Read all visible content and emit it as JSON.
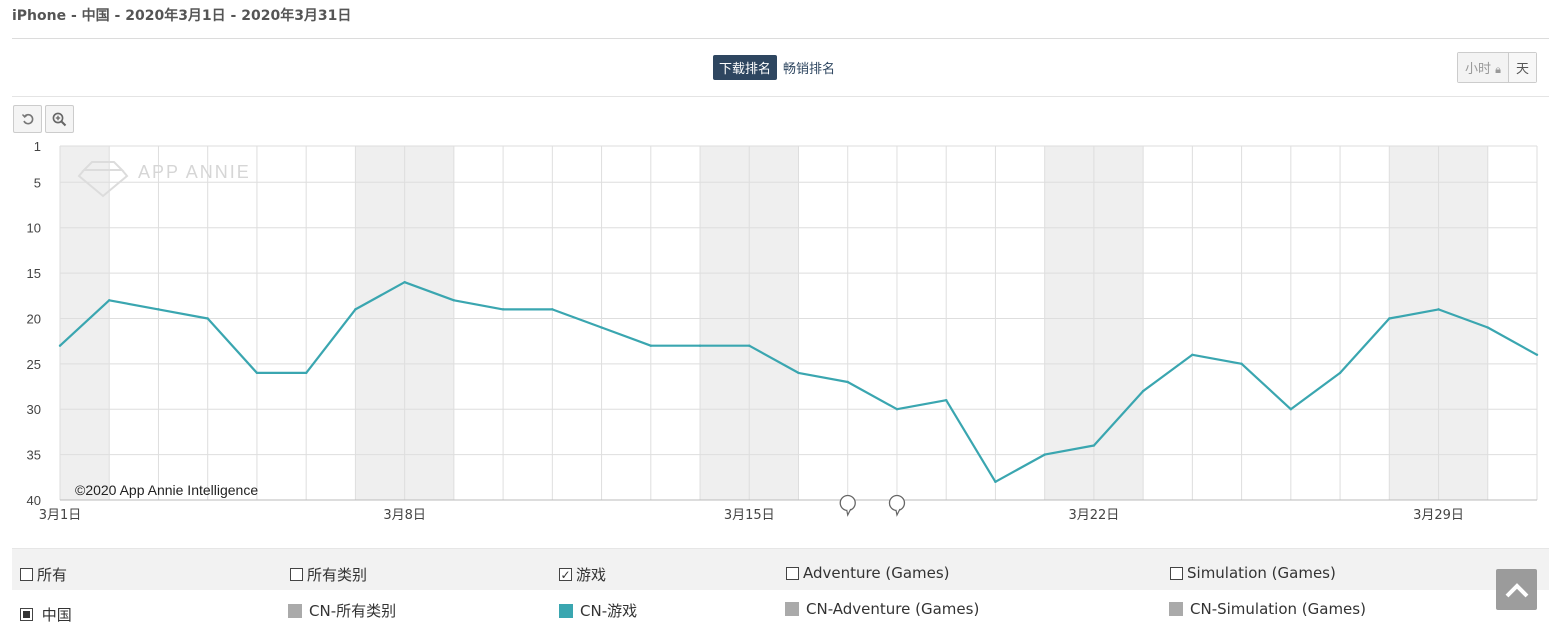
{
  "header": {
    "title": "iPhone - 中国 - 2020年3月1日 - 2020年3月31日"
  },
  "rank_toggle": {
    "download_label": "下载排名",
    "grossing_label": "畅销排名"
  },
  "granularity": {
    "hour_label": "小时",
    "day_label": "天"
  },
  "toolbar": {
    "reset_icon": "reset-icon",
    "zoom_icon": "zoom-icon"
  },
  "chart_data": {
    "type": "line",
    "watermark": "APP ANNIE",
    "credit": "©2020 App Annie Intelligence",
    "y_reversed": true,
    "ylim": [
      1,
      40
    ],
    "yticks": [
      1,
      5,
      10,
      15,
      20,
      25,
      30,
      35,
      40
    ],
    "xlim": [
      "2020-03-01",
      "2020-03-31"
    ],
    "x": [
      "2020-03-01",
      "2020-03-02",
      "2020-03-03",
      "2020-03-04",
      "2020-03-05",
      "2020-03-06",
      "2020-03-07",
      "2020-03-08",
      "2020-03-09",
      "2020-03-10",
      "2020-03-11",
      "2020-03-12",
      "2020-03-13",
      "2020-03-14",
      "2020-03-15",
      "2020-03-16",
      "2020-03-17",
      "2020-03-18",
      "2020-03-19",
      "2020-03-20",
      "2020-03-21",
      "2020-03-22",
      "2020-03-23",
      "2020-03-24",
      "2020-03-25",
      "2020-03-26",
      "2020-03-27",
      "2020-03-28",
      "2020-03-29",
      "2020-03-30",
      "2020-03-31"
    ],
    "xtick_labels": [
      {
        "date": "2020-03-01",
        "label": "3月1日"
      },
      {
        "date": "2020-03-08",
        "label": "3月8日"
      },
      {
        "date": "2020-03-15",
        "label": "3月15日"
      },
      {
        "date": "2020-03-22",
        "label": "3月22日"
      },
      {
        "date": "2020-03-29",
        "label": "3月29日"
      }
    ],
    "weekend_bands": [
      [
        "2020-03-01",
        "2020-03-02"
      ],
      [
        "2020-03-07",
        "2020-03-09"
      ],
      [
        "2020-03-14",
        "2020-03-16"
      ],
      [
        "2020-03-21",
        "2020-03-23"
      ],
      [
        "2020-03-28",
        "2020-03-30"
      ]
    ],
    "annotation_markers": [
      "2020-03-17",
      "2020-03-18"
    ],
    "grid": true,
    "series": [
      {
        "name": "CN-游戏",
        "color": "#3aa6b0",
        "values": [
          23,
          18,
          19,
          20,
          26,
          26,
          19,
          16,
          18,
          19,
          19,
          21,
          23,
          23,
          23,
          26,
          27,
          30,
          29,
          38,
          35,
          34,
          28,
          24,
          25,
          30,
          26,
          20,
          19,
          21,
          24
        ]
      }
    ]
  },
  "legend": {
    "filters": [
      {
        "label": "所有",
        "checked": false
      },
      {
        "label": "所有类别",
        "checked": false
      },
      {
        "label": "游戏",
        "checked": true
      },
      {
        "label": "Adventure (Games)",
        "checked": false
      },
      {
        "label": "Simulation (Games)",
        "checked": false
      }
    ],
    "country": {
      "label": "中国"
    },
    "series": [
      {
        "label": "CN-所有类别",
        "color": "#aaaaaa"
      },
      {
        "label": "CN-游戏",
        "color": "#3aa6b0"
      },
      {
        "label": "CN-Adventure (Games)",
        "color": "#aaaaaa"
      },
      {
        "label": "CN-Simulation (Games)",
        "color": "#aaaaaa"
      }
    ]
  },
  "scroll_top_icon": "arrow-up-icon"
}
